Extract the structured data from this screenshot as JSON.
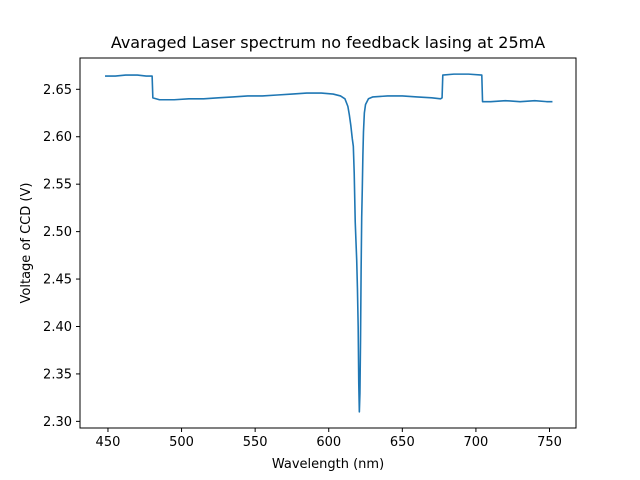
{
  "chart_data": {
    "type": "line",
    "title": "Avaraged Laser spectrum no feedback lasing at 25mA",
    "xlabel": "Wavelength (nm)",
    "ylabel": "Voltage of CCD (V)",
    "xlim": [
      431,
      768
    ],
    "ylim": [
      2.293,
      2.683
    ],
    "xticks": [
      450,
      500,
      550,
      600,
      650,
      700,
      750
    ],
    "yticks": [
      2.3,
      2.35,
      2.4,
      2.45,
      2.5,
      2.55,
      2.6,
      2.65
    ],
    "grid": false,
    "legend": "none",
    "series": [
      {
        "color": "#1f77b4",
        "points": [
          [
            448,
            2.664
          ],
          [
            455,
            2.664
          ],
          [
            462,
            2.665
          ],
          [
            470,
            2.665
          ],
          [
            476,
            2.664
          ],
          [
            480,
            2.664
          ],
          [
            480.5,
            2.641
          ],
          [
            485,
            2.639
          ],
          [
            495,
            2.639
          ],
          [
            505,
            2.64
          ],
          [
            515,
            2.64
          ],
          [
            525,
            2.641
          ],
          [
            535,
            2.642
          ],
          [
            545,
            2.643
          ],
          [
            555,
            2.643
          ],
          [
            565,
            2.644
          ],
          [
            575,
            2.645
          ],
          [
            585,
            2.646
          ],
          [
            595,
            2.646
          ],
          [
            603,
            2.645
          ],
          [
            608,
            2.643
          ],
          [
            611,
            2.64
          ],
          [
            613,
            2.632
          ],
          [
            614,
            2.623
          ],
          [
            615,
            2.612
          ],
          [
            616,
            2.598
          ],
          [
            616.7,
            2.59
          ],
          [
            617.3,
            2.562
          ],
          [
            618,
            2.51
          ],
          [
            618.5,
            2.49
          ],
          [
            619,
            2.47
          ],
          [
            619.5,
            2.44
          ],
          [
            620,
            2.4
          ],
          [
            620.4,
            2.34
          ],
          [
            620.8,
            2.31
          ],
          [
            621.2,
            2.33
          ],
          [
            621.6,
            2.385
          ],
          [
            622,
            2.46
          ],
          [
            622.4,
            2.515
          ],
          [
            622.8,
            2.545
          ],
          [
            623.2,
            2.58
          ],
          [
            623.6,
            2.605
          ],
          [
            624.2,
            2.625
          ],
          [
            625,
            2.634
          ],
          [
            627,
            2.64
          ],
          [
            630,
            2.642
          ],
          [
            640,
            2.643
          ],
          [
            650,
            2.643
          ],
          [
            660,
            2.642
          ],
          [
            670,
            2.641
          ],
          [
            676,
            2.64
          ],
          [
            677,
            2.641
          ],
          [
            677.5,
            2.665
          ],
          [
            685,
            2.666
          ],
          [
            695,
            2.666
          ],
          [
            704,
            2.665
          ],
          [
            704.5,
            2.637
          ],
          [
            710,
            2.637
          ],
          [
            720,
            2.638
          ],
          [
            730,
            2.637
          ],
          [
            740,
            2.638
          ],
          [
            748,
            2.637
          ],
          [
            752,
            2.637
          ]
        ]
      }
    ]
  }
}
